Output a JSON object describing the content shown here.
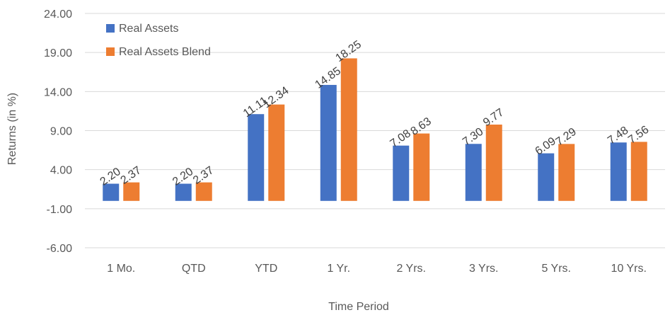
{
  "chart_data": {
    "type": "bar",
    "title": "",
    "xlabel": "Time Period",
    "ylabel": "Returns (in %)",
    "ylim": [
      -6.0,
      24.0
    ],
    "yticks": [
      "24.00",
      "19.00",
      "14.00",
      "9.00",
      "4.00",
      "-1.00",
      "-6.00"
    ],
    "categories": [
      "1 Mo.",
      "QTD",
      "YTD",
      "1 Yr.",
      "2 Yrs.",
      "3 Yrs.",
      "5 Yrs.",
      "10 Yrs."
    ],
    "series": [
      {
        "name": "Real Assets",
        "color": "#4472c4",
        "values": [
          2.2,
          2.2,
          11.11,
          14.85,
          7.08,
          7.3,
          6.09,
          7.48
        ],
        "labels": [
          "2.20",
          "2.20",
          "11.11",
          "14.85",
          "7.08",
          "7.30",
          "6.09",
          "7.48"
        ]
      },
      {
        "name": "Real Assets Blend",
        "color": "#ed7d31",
        "values": [
          2.37,
          2.37,
          12.34,
          18.25,
          8.63,
          9.77,
          7.29,
          7.56
        ],
        "labels": [
          "2.37",
          "2.37",
          "12.34",
          "18.25",
          "8.63",
          "9.77",
          "7.29",
          "7.56"
        ]
      }
    ],
    "grid": true,
    "legend": "top-left"
  }
}
